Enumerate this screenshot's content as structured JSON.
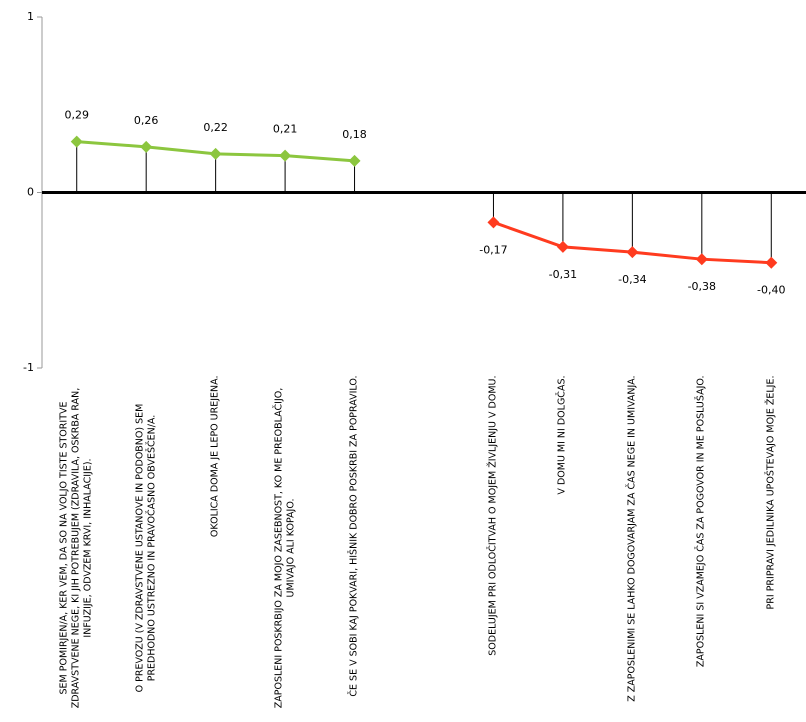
{
  "chart_data": {
    "type": "line",
    "categories": [
      "SEM POMIRJEN/A, KER VEM, DA SO NA VOLJO TISTE STORITVE ZDRAVSTVENE NEGE, KI JIH POTREBUJEM (ZDRAVILA, OSKRBA RAN, INFUZIJE, ODVZEM KRVI, INHALACIJE).",
      "O PREVOZU (V ZDRAVSTVENE USTANOVE IN PODOBNO) SEM PREDHODNO USTREZNO IN PRAVOČASNO OBVEŠČEN/A.",
      "OKOLICA DOMA JE LEPO UREJENA.",
      "ZAPOSLENI POSKRBIJO ZA MOJO ZASEBNOST, KO ME PREOBLAČIJO, UMIVAJO ALI KOPAJO.",
      "ČE SE V SOBI KAJ POKVARI, HIŠNIK DOBRO POSKRBI ZA POPRAVILO.",
      null,
      "SODELUJEM PRI ODLOČITVAH O MOJEM ŽIVLJENJU V DOMU.",
      "V DOMU MI NI DOLGČAS.",
      "Z ZAPOSLENIMI SE LAHKO DOGOVARJAM ZA ČAS NEGE IN UMIVANJA.",
      "ZAPOSLENI SI VZAMEJO ČAS ZA POGOVOR IN ME POSLUŠAJO.",
      "PRI PRIPRAVI JEDILNIKA UPOŠTEVAJO MOJE ŽELJE."
    ],
    "series": [
      {
        "color": "#8cc63f",
        "values": [
          0.29,
          0.26,
          0.22,
          0.21,
          0.18,
          null,
          null,
          null,
          null,
          null,
          null
        ],
        "value_labels": [
          "0,29",
          "0,26",
          "0,22",
          "0,21",
          "0,18",
          null,
          null,
          null,
          null,
          null,
          null
        ]
      },
      {
        "color": "#ff3b1f",
        "values": [
          null,
          null,
          null,
          null,
          null,
          null,
          -0.17,
          -0.31,
          -0.34,
          -0.38,
          -0.4
        ],
        "value_labels": [
          null,
          null,
          null,
          null,
          null,
          null,
          "-0,17",
          "-0,31",
          "-0,34",
          "-0,38",
          "-0,40"
        ]
      }
    ],
    "ylim": [
      -1,
      1
    ],
    "yticks": [
      -1,
      0,
      1
    ]
  }
}
